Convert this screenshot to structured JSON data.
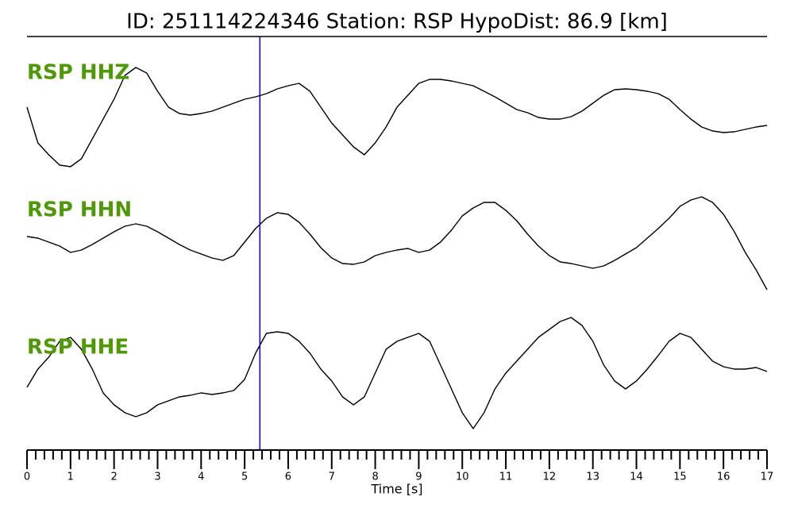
{
  "chart_data": {
    "type": "seismogram",
    "title": "ID: 251114224346   Station: RSP   HypoDist:    86.9 [km]",
    "x_label": "Time [s]",
    "xlim": [
      0,
      17
    ],
    "xticks": [
      0,
      1,
      2,
      3,
      4,
      5,
      6,
      7,
      8,
      9,
      10,
      11,
      12,
      13,
      14,
      15,
      16,
      17
    ],
    "minor_xticks": [
      0.2,
      0.4,
      0.6,
      0.8,
      1.2,
      1.4,
      1.6,
      1.8,
      2.2,
      2.4,
      2.6,
      2.8,
      3.2,
      3.4,
      3.6,
      3.8,
      4.2,
      4.4,
      4.6,
      4.8,
      5.2,
      5.4,
      5.6,
      5.8,
      6.2,
      6.4,
      6.6,
      6.8,
      7.2,
      7.4,
      7.6,
      7.8,
      8.2,
      8.4,
      8.6,
      8.8,
      9.2,
      9.4,
      9.6,
      9.8,
      10.2,
      10.4,
      10.6,
      10.8,
      11.2,
      11.4,
      11.6,
      11.8,
      12.2,
      12.4,
      12.6,
      12.8,
      13.2,
      13.4,
      13.6,
      13.8,
      14.2,
      14.4,
      14.6,
      14.8,
      15.2,
      15.4,
      15.6,
      15.8,
      16.2,
      16.4,
      16.6,
      16.8
    ],
    "x": [
      0,
      0.25,
      0.5,
      0.75,
      1,
      1.25,
      1.5,
      1.75,
      2,
      2.25,
      2.5,
      2.75,
      3,
      3.25,
      3.5,
      3.75,
      4,
      4.25,
      4.5,
      4.75,
      5,
      5.25,
      5.5,
      5.75,
      6,
      6.25,
      6.5,
      6.75,
      7,
      7.25,
      7.5,
      7.75,
      8,
      8.25,
      8.5,
      8.75,
      9,
      9.25,
      9.5,
      9.75,
      10,
      10.25,
      10.5,
      10.75,
      11,
      11.25,
      11.5,
      11.75,
      12,
      12.25,
      12.5,
      12.75,
      13,
      13.25,
      13.5,
      13.75,
      14,
      14.25,
      14.5,
      14.75,
      15,
      15.25,
      15.5,
      15.75,
      16,
      16.25,
      16.5,
      16.75,
      17
    ],
    "label_color": "#4e9a06",
    "series": [
      {
        "name": "RSP HHZ",
        "color": "#000000",
        "ylim": [
          -65,
          65
        ],
        "values": [
          15,
          -30,
          -45,
          -58,
          -60,
          -50,
          -25,
          0,
          25,
          55,
          65,
          58,
          35,
          15,
          7,
          5,
          7,
          10,
          15,
          20,
          25,
          28,
          32,
          38,
          42,
          45,
          35,
          15,
          -5,
          -20,
          -35,
          -45,
          -30,
          -10,
          15,
          30,
          45,
          50,
          50,
          48,
          45,
          42,
          35,
          28,
          20,
          12,
          8,
          2,
          0,
          0,
          3,
          10,
          20,
          30,
          37,
          38,
          37,
          35,
          32,
          25,
          12,
          0,
          -10,
          -15,
          -17,
          -16,
          -13,
          -10,
          -8
        ]
      },
      {
        "name": "RSP HHN",
        "color": "#000000",
        "ylim": [
          -60,
          60
        ],
        "values": [
          7,
          5,
          0,
          -5,
          -13,
          -10,
          -3,
          5,
          13,
          20,
          23,
          20,
          13,
          5,
          -3,
          -10,
          -15,
          -20,
          -23,
          -17,
          0,
          17,
          30,
          37,
          35,
          25,
          10,
          -7,
          -20,
          -27,
          -28,
          -25,
          -17,
          -13,
          -10,
          -8,
          -13,
          -10,
          0,
          15,
          33,
          43,
          50,
          50,
          40,
          27,
          10,
          -5,
          -17,
          -25,
          -27,
          -30,
          -33,
          -30,
          -23,
          -15,
          -7,
          5,
          17,
          30,
          45,
          53,
          57,
          50,
          35,
          13,
          -13,
          -35,
          -60
        ]
      },
      {
        "name": "RSP HHE",
        "color": "#000000",
        "ylim": [
          -83,
          83
        ],
        "values": [
          -11,
          12,
          27,
          47,
          52,
          37,
          12,
          -18,
          -33,
          -43,
          -48,
          -43,
          -33,
          -28,
          -23,
          -21,
          -18,
          -20,
          -18,
          -15,
          -1,
          32,
          57,
          59,
          57,
          47,
          32,
          12,
          -3,
          -23,
          -33,
          -23,
          7,
          37,
          47,
          52,
          57,
          47,
          17,
          -13,
          -43,
          -63,
          -43,
          -13,
          7,
          22,
          37,
          52,
          62,
          72,
          77,
          67,
          47,
          17,
          -3,
          -13,
          -3,
          12,
          29,
          47,
          57,
          52,
          37,
          22,
          15,
          12,
          12,
          14,
          9
        ]
      }
    ],
    "markers": [
      {
        "x": 5.35,
        "color": "#0000cc"
      }
    ]
  }
}
